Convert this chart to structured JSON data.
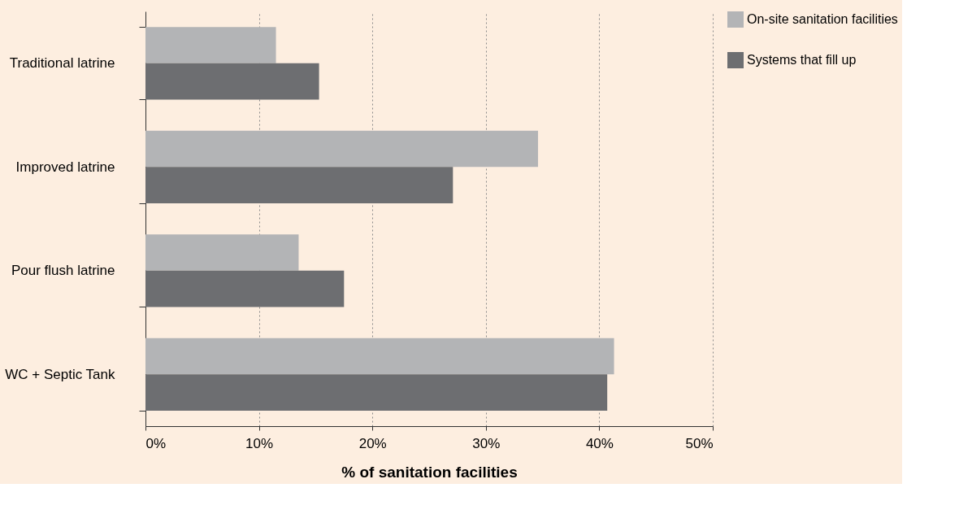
{
  "chart_data": {
    "type": "bar",
    "orientation": "horizontal",
    "xlabel": "% of sanitation facilities",
    "categories": [
      "Traditional latrine",
      "Improved latrine",
      "Pour flush latrine",
      "WC + Septic Tank"
    ],
    "series": [
      {
        "name": "On-site sanitation facilities",
        "color": "#b3b4b6",
        "values": [
          11.5,
          34.6,
          13.5,
          41.3
        ]
      },
      {
        "name": "Systems that fill up",
        "color": "#6d6e71",
        "values": [
          15.3,
          27.1,
          17.5,
          40.7
        ]
      }
    ],
    "xlim": [
      0,
      50
    ],
    "xticks": [
      {
        "value": 0,
        "label": "0%"
      },
      {
        "value": 10,
        "label": "10%"
      },
      {
        "value": 20,
        "label": "20%"
      },
      {
        "value": 30,
        "label": "30%"
      },
      {
        "value": 40,
        "label": "40%"
      },
      {
        "value": 50,
        "label": "50%"
      }
    ],
    "grid": "x",
    "legend": "right"
  }
}
